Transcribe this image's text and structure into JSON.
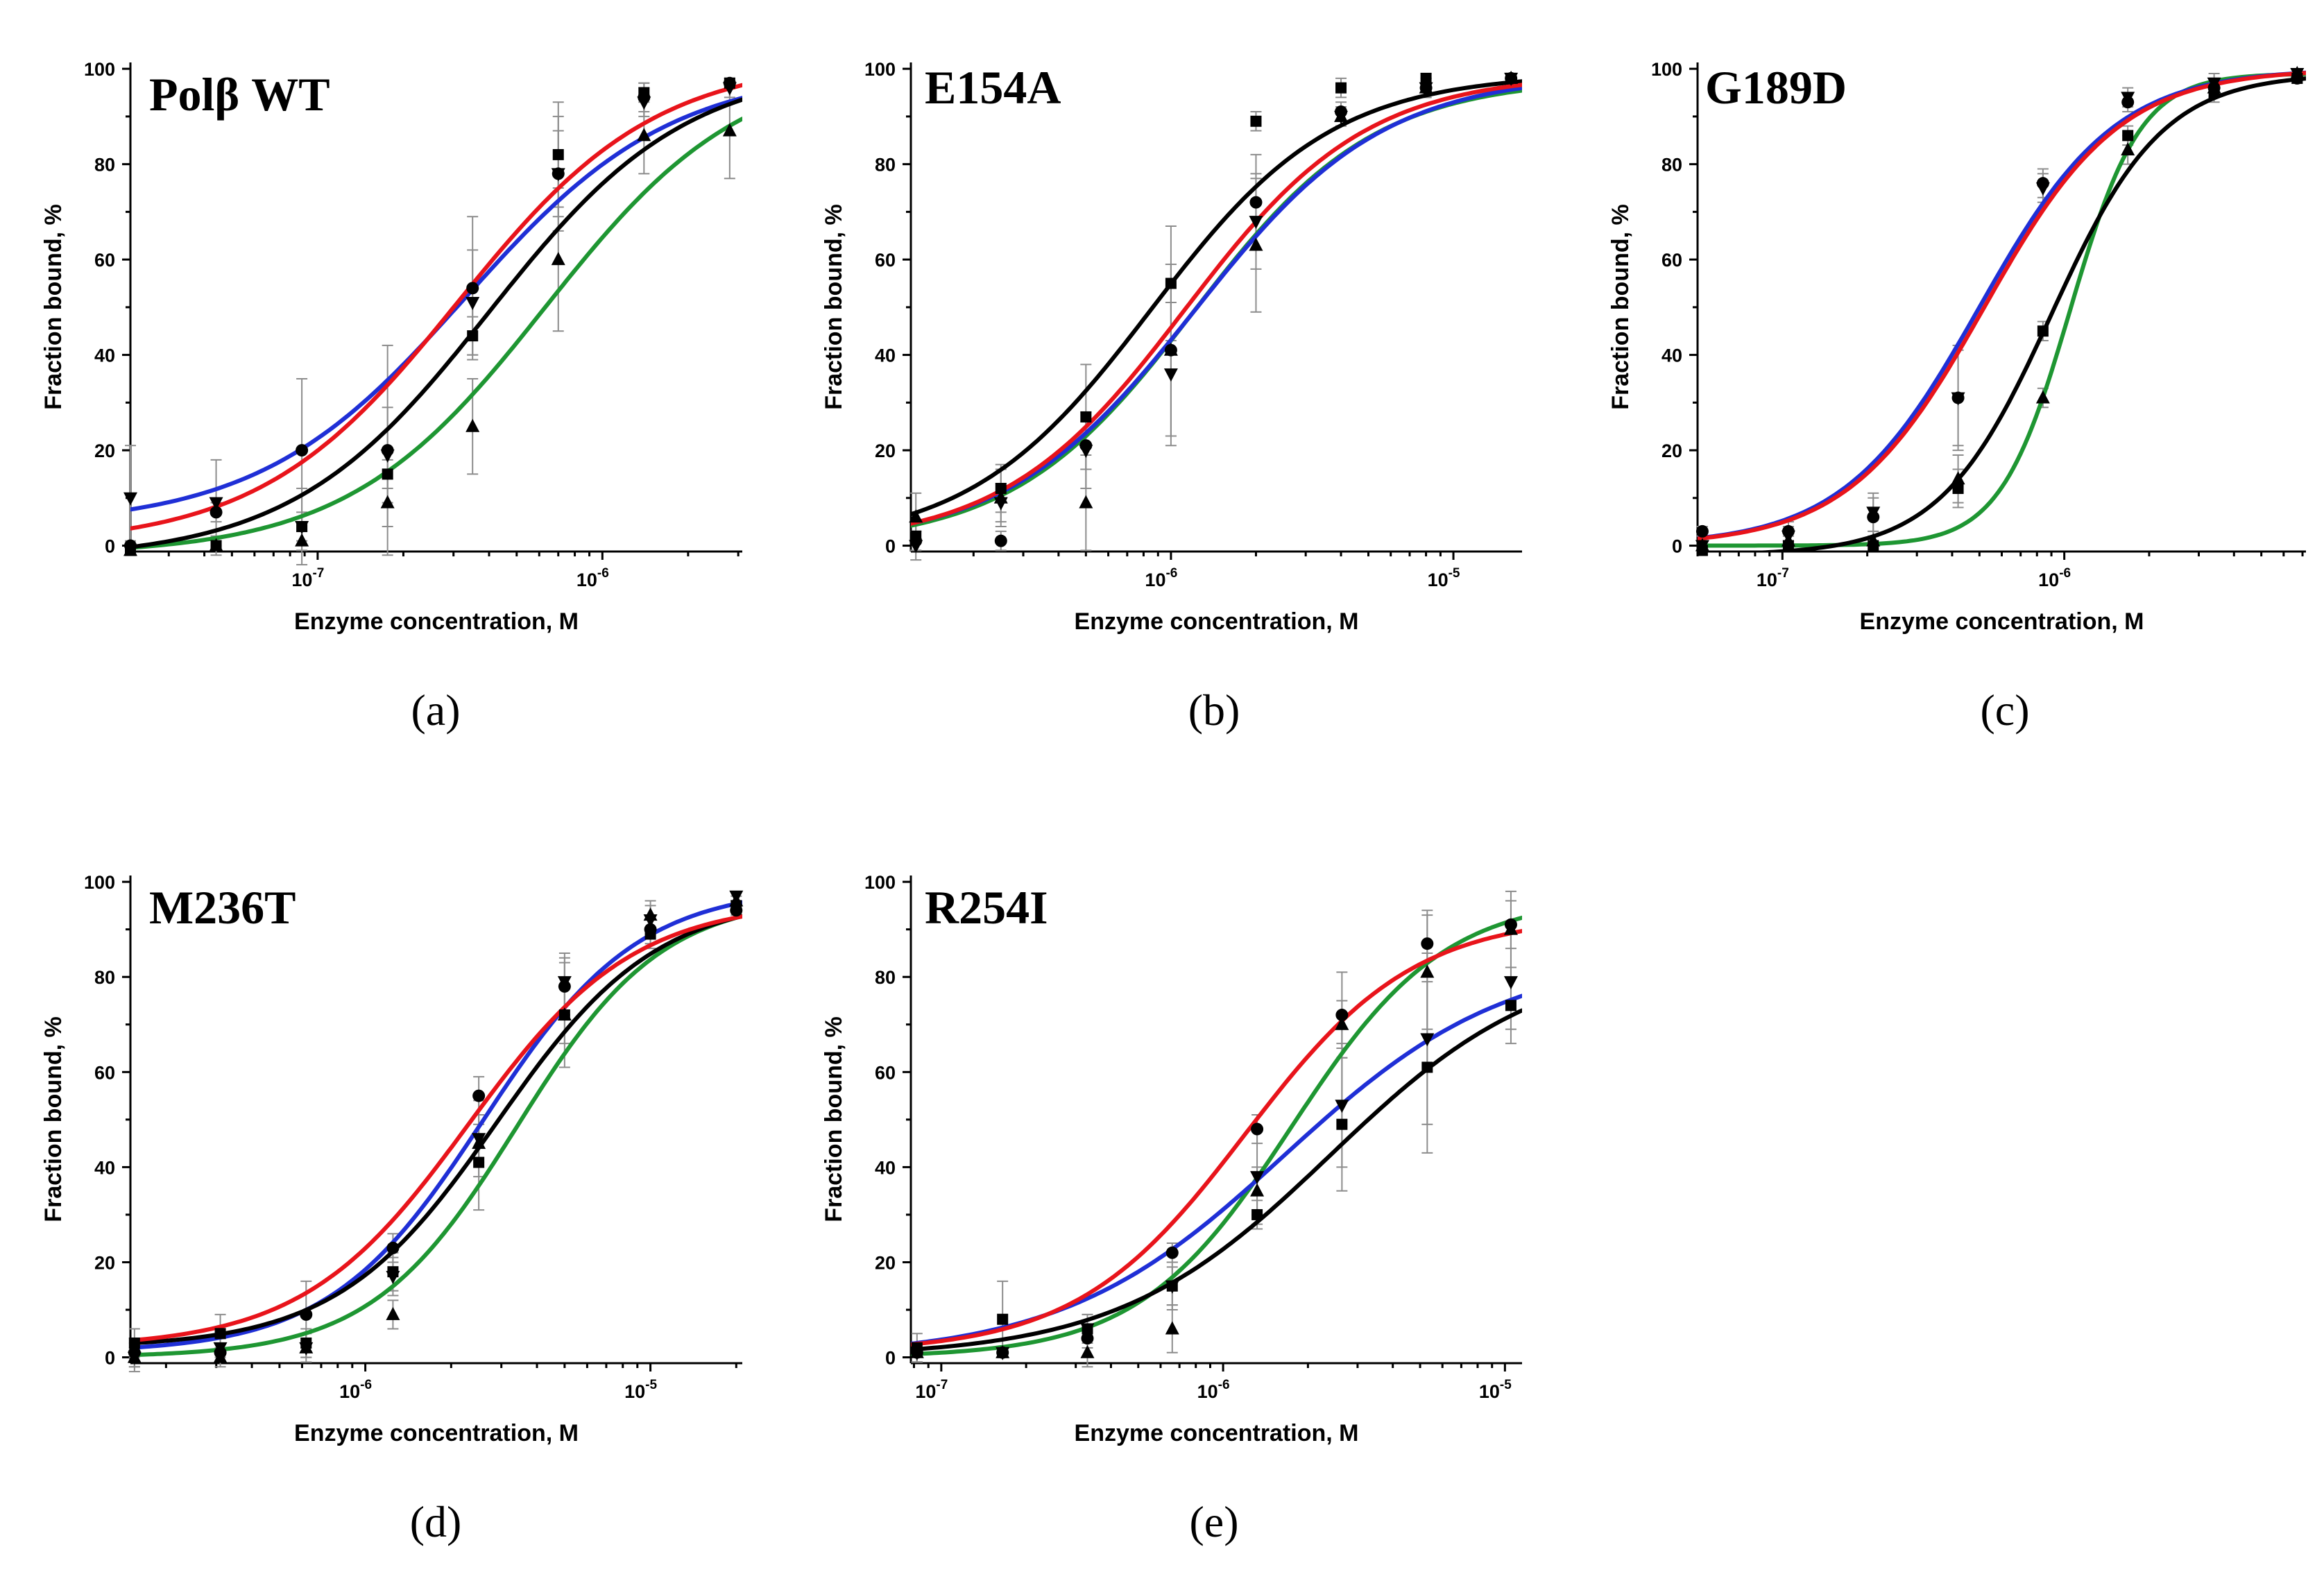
{
  "figure": {
    "series_colors": {
      "black": "#000000",
      "red": "#e8141b",
      "blue": "#1f2fd6",
      "green": "#1e9632"
    },
    "marker_shapes": {
      "square": "square-marker",
      "circle": "circle-marker",
      "triangle-up": "triangle-up-marker",
      "triangle-down": "triangle-down-marker"
    }
  },
  "chart_data": [
    {
      "id": "a",
      "type": "line",
      "title": "Polβ WT",
      "panel_label": "(a)",
      "xlabel": "Enzyme concentration, M",
      "ylabel": "Fraction bound, %",
      "xscale": "log",
      "xlim": [
        2.2e-08,
        3.1e-06
      ],
      "ylim": [
        0,
        100
      ],
      "yticks": [
        0,
        20,
        40,
        60,
        80,
        100
      ],
      "xticks": [
        {
          "value": 1e-07,
          "base": "10",
          "exp": "-7"
        },
        {
          "value": 1e-06,
          "base": "10",
          "exp": "-6"
        }
      ],
      "x": [
        2.2e-08,
        4.4e-08,
        8.8e-08,
        1.76e-07,
        3.5e-07,
        7e-07,
        1.4e-06,
        2.8e-06
      ],
      "series": [
        {
          "name": "black",
          "color": "#000000",
          "marker": "square",
          "fit": {
            "bottom": -3,
            "top": 101,
            "ec50": 4e-07,
            "hill": 1.25
          },
          "values": [
            -1,
            0,
            4,
            15,
            44,
            82,
            95,
            97
          ],
          "errors": [
            1,
            2,
            3,
            3,
            4,
            11,
            2,
            1
          ]
        },
        {
          "name": "red",
          "color": "#e8141b",
          "marker": "circle",
          "fit": {
            "bottom": 0,
            "top": 102,
            "ec50": 3.1e-07,
            "hill": 1.25
          },
          "values": [
            0,
            7,
            20,
            20,
            54,
            78,
            94,
            97
          ],
          "errors": [
            1,
            2,
            15,
            22,
            15,
            12,
            3,
            1
          ]
        },
        {
          "name": "blue",
          "color": "#1f2fd6",
          "marker": "triangle-down",
          "fit": {
            "bottom": 4,
            "top": 100,
            "ec50": 3.3e-07,
            "hill": 1.2
          },
          "values": [
            10,
            9,
            4,
            19,
            51,
            78,
            93,
            96
          ],
          "errors": [
            11,
            9,
            8,
            10,
            11,
            9,
            3,
            2
          ]
        },
        {
          "name": "green",
          "color": "#1e9632",
          "marker": "triangle-up",
          "fit": {
            "bottom": -2,
            "top": 102,
            "ec50": 6.3e-07,
            "hill": 1.25
          },
          "values": [
            -1,
            0,
            1,
            9,
            25,
            60,
            86,
            87
          ],
          "errors": [
            1,
            1,
            2,
            5,
            10,
            15,
            8,
            10
          ]
        }
      ]
    },
    {
      "id": "b",
      "type": "line",
      "title": "E154A",
      "panel_label": "(b)",
      "xlabel": "Enzyme concentration, M",
      "ylabel": "Fraction bound, %",
      "xscale": "log",
      "xlim": [
        1.2e-07,
        1.75e-05
      ],
      "ylim": [
        0,
        100
      ],
      "yticks": [
        0,
        20,
        40,
        60,
        80,
        100
      ],
      "xticks": [
        {
          "value": 1e-06,
          "base": "10",
          "exp": "-6"
        },
        {
          "value": 1e-05,
          "base": "10",
          "exp": "-5"
        }
      ],
      "x": [
        1.25e-07,
        2.5e-07,
        5e-07,
        1e-06,
        2e-06,
        4e-06,
        8e-06,
        1.6e-05
      ],
      "series": [
        {
          "name": "black",
          "color": "#000000",
          "marker": "square",
          "fit": {
            "bottom": 0,
            "top": 99,
            "ec50": 8.5e-07,
            "hill": 1.35
          },
          "values": [
            2,
            12,
            27,
            55,
            89,
            96,
            98,
            98
          ],
          "errors": [
            3,
            5,
            11,
            12,
            2,
            2,
            1,
            1
          ]
        },
        {
          "name": "red",
          "color": "#e8141b",
          "marker": "circle",
          "fit": {
            "bottom": 0,
            "top": 99,
            "ec50": 1.12e-06,
            "hill": 1.35
          },
          "values": [
            1,
            1,
            21,
            41,
            72,
            91,
            96,
            98
          ],
          "errors": [
            2,
            2,
            5,
            18,
            10,
            2,
            2,
            1
          ]
        },
        {
          "name": "blue",
          "color": "#1f2fd6",
          "marker": "triangle-down",
          "fit": {
            "bottom": 0,
            "top": 99,
            "ec50": 1.22e-06,
            "hill": 1.3
          },
          "values": [
            0,
            9,
            20,
            36,
            68,
            90,
            96,
            98
          ],
          "errors": [
            3,
            4,
            8,
            15,
            10,
            2,
            2,
            1
          ]
        },
        {
          "name": "green",
          "color": "#1e9632",
          "marker": "triangle-up",
          "fit": {
            "bottom": 0,
            "top": 98,
            "ec50": 1.2e-06,
            "hill": 1.35
          },
          "values": [
            6,
            10,
            9,
            41,
            63,
            90,
            96,
            98
          ],
          "errors": [
            5,
            6,
            10,
            18,
            14,
            2,
            2,
            1
          ]
        }
      ]
    },
    {
      "id": "c",
      "type": "line",
      "title": "G189D",
      "panel_label": "(c)",
      "xlabel": "Enzyme concentration, M",
      "ylabel": "Fraction bound, %",
      "xscale": "log",
      "xlim": [
        5e-08,
        7.2e-06
      ],
      "ylim": [
        0,
        100
      ],
      "yticks": [
        0,
        20,
        40,
        60,
        80,
        100
      ],
      "xticks": [
        {
          "value": 1e-07,
          "base": "10",
          "exp": "-7"
        },
        {
          "value": 1e-06,
          "base": "10",
          "exp": "-6"
        }
      ],
      "x": [
        5.2e-08,
        1.05e-07,
        2.1e-07,
        4.2e-07,
        8.4e-07,
        1.68e-06,
        3.4e-06,
        6.7e-06
      ],
      "series": [
        {
          "name": "black",
          "color": "#000000",
          "marker": "square",
          "fit": {
            "bottom": -2,
            "top": 99,
            "ec50": 9e-07,
            "hill": 2.2
          },
          "values": [
            -1,
            0,
            0,
            12,
            45,
            86,
            95,
            98
          ],
          "errors": [
            1,
            1,
            1,
            4,
            2,
            2,
            2,
            1
          ]
        },
        {
          "name": "red",
          "color": "#e8141b",
          "marker": "circle",
          "fit": {
            "bottom": 0,
            "top": 100,
            "ec50": 5.2e-07,
            "hill": 1.8
          },
          "values": [
            3,
            3,
            6,
            31,
            76,
            93,
            96,
            98
          ],
          "errors": [
            1,
            2,
            4,
            10,
            3,
            2,
            2,
            1
          ]
        },
        {
          "name": "blue",
          "color": "#1f2fd6",
          "marker": "triangle-down",
          "fit": {
            "bottom": 0,
            "top": 100,
            "ec50": 5e-07,
            "hill": 1.8
          },
          "values": [
            0,
            2,
            7,
            31,
            75,
            94,
            97,
            99
          ],
          "errors": [
            1,
            2,
            4,
            11,
            3,
            2,
            2,
            1
          ]
        },
        {
          "name": "green",
          "color": "#1e9632",
          "marker": "triangle-up",
          "fit": {
            "bottom": 0,
            "top": 99,
            "ec50": 1.05e-06,
            "hill": 3.5
          },
          "values": [
            0,
            1,
            1,
            14,
            31,
            83,
            96,
            99
          ],
          "errors": [
            1,
            1,
            2,
            5,
            2,
            3,
            2,
            1
          ]
        }
      ]
    },
    {
      "id": "d",
      "type": "line",
      "title": "M236T",
      "panel_label": "(d)",
      "xlabel": "Enzyme concentration, M",
      "ylabel": "Fraction bound, %",
      "xscale": "log",
      "xlim": [
        1.5e-07,
        2.1e-05
      ],
      "ylim": [
        0,
        100
      ],
      "yticks": [
        0,
        20,
        40,
        60,
        80,
        100
      ],
      "xticks": [
        {
          "value": 1e-06,
          "base": "10",
          "exp": "-6"
        },
        {
          "value": 1e-05,
          "base": "10",
          "exp": "-5"
        }
      ],
      "x": [
        1.55e-07,
        3.1e-07,
        6.2e-07,
        1.25e-06,
        2.5e-06,
        5e-06,
        1e-05,
        2e-05
      ],
      "series": [
        {
          "name": "black",
          "color": "#000000",
          "marker": "square",
          "fit": {
            "bottom": 2,
            "top": 97,
            "ec50": 2.9e-06,
            "hill": 1.55
          },
          "values": [
            3,
            5,
            3,
            18,
            41,
            72,
            89,
            95
          ],
          "errors": [
            3,
            4,
            3,
            4,
            10,
            11,
            3,
            1
          ]
        },
        {
          "name": "red",
          "color": "#e8141b",
          "marker": "circle",
          "fit": {
            "bottom": 2,
            "top": 96,
            "ec50": 2.3e-06,
            "hill": 1.5
          },
          "values": [
            1,
            1,
            9,
            23,
            55,
            78,
            90,
            94
          ],
          "errors": [
            3,
            2,
            7,
            3,
            4,
            6,
            3,
            1
          ]
        },
        {
          "name": "blue",
          "color": "#1f2fd6",
          "marker": "triangle-down",
          "fit": {
            "bottom": 1,
            "top": 99,
            "ec50": 2.6e-06,
            "hill": 1.6
          },
          "values": [
            0,
            2,
            2,
            17,
            46,
            79,
            92,
            97
          ],
          "errors": [
            3,
            2,
            3,
            4,
            8,
            6,
            3,
            1
          ]
        },
        {
          "name": "green",
          "color": "#1e9632",
          "marker": "triangle-up",
          "fit": {
            "bottom": 0,
            "top": 97,
            "ec50": 3.4e-06,
            "hill": 1.7
          },
          "values": [
            0,
            0,
            2,
            9,
            45,
            72,
            93,
            96
          ],
          "errors": [
            2,
            2,
            2,
            3,
            4,
            6,
            3,
            1
          ]
        }
      ]
    },
    {
      "id": "e",
      "type": "line",
      "title": "R254I",
      "panel_label": "(e)",
      "xlabel": "Enzyme concentration, M",
      "ylabel": "Fraction bound, %",
      "xscale": "log",
      "xlim": [
        7.8e-08,
        1.15e-05
      ],
      "ylim": [
        0,
        100
      ],
      "yticks": [
        0,
        20,
        40,
        60,
        80,
        100
      ],
      "xticks": [
        {
          "value": 1e-07,
          "base": "10",
          "exp": "-7"
        },
        {
          "value": 1e-06,
          "base": "10",
          "exp": "-6"
        },
        {
          "value": 1e-05,
          "base": "10",
          "exp": "-5"
        }
      ],
      "x": [
        8.2e-08,
        1.65e-07,
        3.3e-07,
        6.6e-07,
        1.32e-06,
        2.64e-06,
        5.3e-06,
        1.05e-05
      ],
      "series": [
        {
          "name": "black",
          "color": "#000000",
          "marker": "square",
          "fit": {
            "bottom": 0,
            "top": 85,
            "ec50": 2.4e-06,
            "hill": 1.15
          },
          "values": [
            2,
            8,
            6,
            15,
            30,
            49,
            61,
            74
          ],
          "errors": [
            3,
            8,
            3,
            4,
            3,
            14,
            18,
            8
          ]
        },
        {
          "name": "red",
          "color": "#e8141b",
          "marker": "circle",
          "fit": {
            "bottom": 1,
            "top": 93,
            "ec50": 1.2e-06,
            "hill": 1.45
          },
          "values": [
            1,
            1,
            4,
            22,
            48,
            72,
            87,
            91
          ],
          "errors": [
            2,
            1,
            2,
            2,
            3,
            9,
            7,
            5
          ]
        },
        {
          "name": "blue",
          "color": "#1f2fd6",
          "marker": "triangle-down",
          "fit": {
            "bottom": 0,
            "top": 85,
            "ec50": 1.65e-06,
            "hill": 1.1
          },
          "values": [
            1,
            1,
            6,
            15,
            38,
            53,
            67,
            79
          ],
          "errors": [
            2,
            1,
            3,
            5,
            10,
            13,
            18,
            10
          ]
        },
        {
          "name": "green",
          "color": "#1e9632",
          "marker": "triangle-up",
          "fit": {
            "bottom": 0,
            "top": 97,
            "ec50": 1.75e-06,
            "hill": 1.6
          },
          "values": [
            1,
            1,
            1,
            6,
            35,
            70,
            81,
            90
          ],
          "errors": [
            2,
            1,
            3,
            5,
            5,
            5,
            12,
            8
          ]
        }
      ]
    }
  ]
}
